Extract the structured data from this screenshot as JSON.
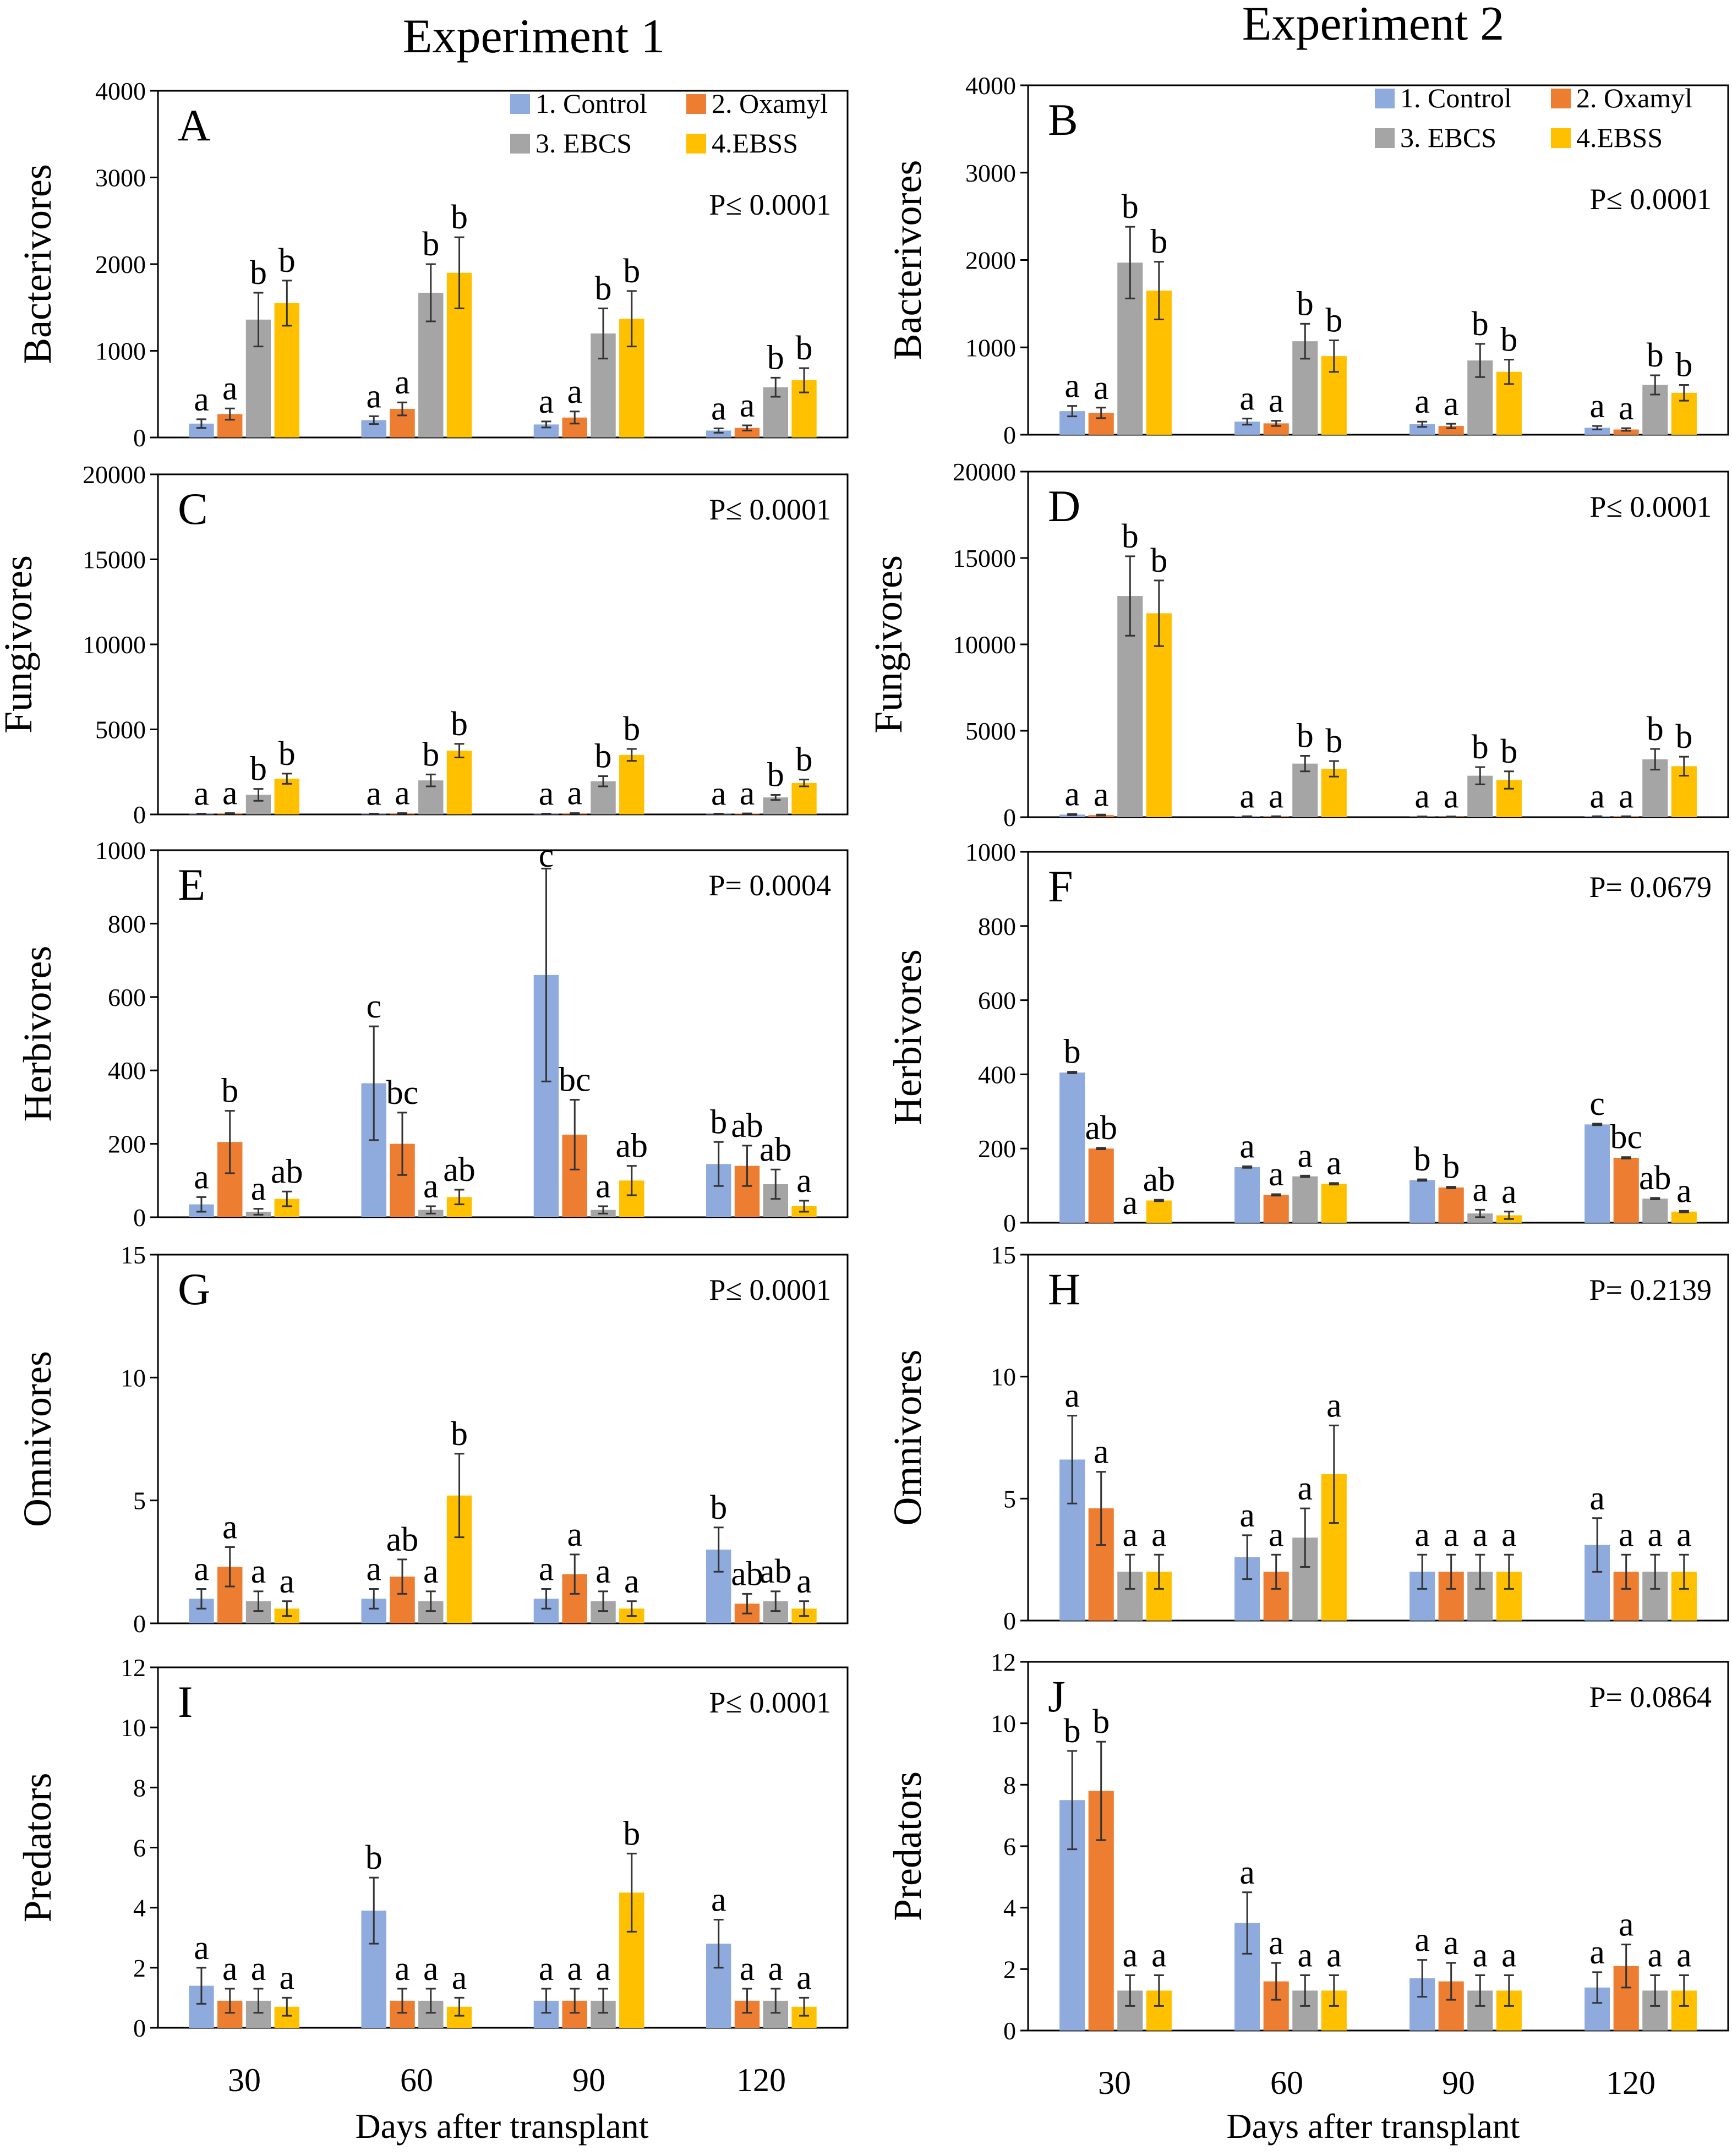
{
  "colors": {
    "control": "#8FAADC",
    "oxamyl": "#ED7D31",
    "ebcs": "#A5A5A5",
    "ebss": "#FFC000"
  },
  "experiments": [
    "Experiment 1",
    "Experiment 2"
  ],
  "xlabel": "Days after transplant",
  "x_categories": [
    "30",
    "60",
    "90",
    "120"
  ],
  "legend": [
    "1. Control",
    "2. Oxamyl",
    "3. EBCS",
    "4.EBSS"
  ],
  "chart_data": [
    {
      "type": "bar",
      "panel": "A",
      "experiment": "Experiment 1",
      "ylabel": "Bacterivores",
      "p_value": "P≤ 0.0001",
      "ylim": [
        0,
        4000
      ],
      "yticks": [
        0,
        1000,
        2000,
        3000,
        4000
      ],
      "categories": [
        "30",
        "60",
        "90",
        "120"
      ],
      "legend": true,
      "series": [
        {
          "name": "1. Control",
          "values": [
            160,
            200,
            150,
            80
          ],
          "errors": [
            50,
            45,
            35,
            25
          ],
          "letters": [
            "a",
            "a",
            "a",
            "a"
          ]
        },
        {
          "name": "2. Oxamyl",
          "values": [
            270,
            330,
            230,
            110
          ],
          "errors": [
            65,
            75,
            70,
            30
          ],
          "letters": [
            "a",
            "a",
            "a",
            "a"
          ]
        },
        {
          "name": "3. EBCS",
          "values": [
            1360,
            1670,
            1200,
            580
          ],
          "errors": [
            310,
            330,
            290,
            110
          ],
          "letters": [
            "b",
            "b",
            "b",
            "b"
          ]
        },
        {
          "name": "4.EBSS",
          "values": [
            1550,
            1900,
            1370,
            660
          ],
          "errors": [
            260,
            410,
            320,
            140
          ],
          "letters": [
            "b",
            "b",
            "b",
            "b"
          ]
        }
      ]
    },
    {
      "type": "bar",
      "panel": "B",
      "experiment": "Experiment 2",
      "ylabel": "Bacterivores",
      "p_value": "P≤ 0.0001",
      "ylim": [
        0,
        4000
      ],
      "yticks": [
        0,
        1000,
        2000,
        3000,
        4000
      ],
      "categories": [
        "30",
        "60",
        "90",
        "120"
      ],
      "legend": true,
      "series": [
        {
          "name": "1. Control",
          "values": [
            270,
            150,
            120,
            80
          ],
          "errors": [
            60,
            35,
            30,
            20
          ],
          "letters": [
            "a",
            "a",
            "a",
            "a"
          ]
        },
        {
          "name": "2. Oxamyl",
          "values": [
            250,
            130,
            100,
            60
          ],
          "errors": [
            60,
            30,
            25,
            15
          ],
          "letters": [
            "a",
            "a",
            "a",
            "a"
          ]
        },
        {
          "name": "3. EBCS",
          "values": [
            1970,
            1070,
            850,
            570
          ],
          "errors": [
            410,
            200,
            190,
            110
          ],
          "letters": [
            "b",
            "b",
            "b",
            "b"
          ]
        },
        {
          "name": "4.EBSS",
          "values": [
            1650,
            900,
            720,
            480
          ],
          "errors": [
            330,
            180,
            140,
            90
          ],
          "letters": [
            "b",
            "b",
            "b",
            "b"
          ]
        }
      ]
    },
    {
      "type": "bar",
      "panel": "C",
      "experiment": "Experiment 1",
      "ylabel": "Fungivores",
      "p_value": "P≤ 0.0001",
      "ylim": [
        0,
        20000
      ],
      "yticks": [
        0,
        5000,
        10000,
        15000,
        20000
      ],
      "categories": [
        "30",
        "60",
        "90",
        "120"
      ],
      "legend": false,
      "series": [
        {
          "name": "1. Control",
          "values": [
            40,
            40,
            40,
            40
          ],
          "errors": [
            10,
            10,
            10,
            10
          ],
          "letters": [
            "a",
            "a",
            "a",
            "a"
          ]
        },
        {
          "name": "2. Oxamyl",
          "values": [
            60,
            60,
            60,
            50
          ],
          "errors": [
            15,
            15,
            15,
            10
          ],
          "letters": [
            "a",
            "a",
            "a",
            "a"
          ]
        },
        {
          "name": "3. EBCS",
          "values": [
            1150,
            2000,
            1950,
            1000
          ],
          "errors": [
            350,
            350,
            300,
            150
          ],
          "letters": [
            "b",
            "b",
            "b",
            "b"
          ]
        },
        {
          "name": "4.EBSS",
          "values": [
            2100,
            3750,
            3500,
            1850
          ],
          "errors": [
            300,
            400,
            350,
            200
          ],
          "letters": [
            "b",
            "b",
            "b",
            "b"
          ]
        }
      ]
    },
    {
      "type": "bar",
      "panel": "D",
      "experiment": "Experiment 2",
      "ylabel": "Fungivores",
      "p_value": "P≤ 0.0001",
      "ylim": [
        0,
        20000
      ],
      "yticks": [
        0,
        5000,
        10000,
        15000,
        20000
      ],
      "categories": [
        "30",
        "60",
        "90",
        "120"
      ],
      "legend": false,
      "series": [
        {
          "name": "1. Control",
          "values": [
            150,
            40,
            30,
            40
          ],
          "errors": [
            30,
            10,
            10,
            10
          ],
          "letters": [
            "a",
            "a",
            "a",
            "a"
          ]
        },
        {
          "name": "2. Oxamyl",
          "values": [
            120,
            40,
            30,
            40
          ],
          "errors": [
            30,
            10,
            10,
            10
          ],
          "letters": [
            "a",
            "a",
            "a",
            "a"
          ]
        },
        {
          "name": "3. EBCS",
          "values": [
            12800,
            3100,
            2400,
            3350
          ],
          "errors": [
            2300,
            450,
            500,
            600
          ],
          "letters": [
            "b",
            "b",
            "b",
            "b"
          ]
        },
        {
          "name": "4.EBSS",
          "values": [
            11800,
            2800,
            2150,
            2950
          ],
          "errors": [
            1900,
            450,
            500,
            550
          ],
          "letters": [
            "b",
            "b",
            "b",
            "b"
          ]
        }
      ]
    },
    {
      "type": "bar",
      "panel": "E",
      "experiment": "Experiment 1",
      "ylabel": "Herbivores",
      "p_value": "P= 0.0004",
      "ylim": [
        0,
        1000
      ],
      "yticks": [
        0,
        200,
        400,
        600,
        800,
        1000
      ],
      "categories": [
        "30",
        "60",
        "90",
        "120"
      ],
      "legend": false,
      "series": [
        {
          "name": "1. Control",
          "values": [
            35,
            365,
            660,
            145
          ],
          "errors": [
            20,
            155,
            290,
            60
          ],
          "letters": [
            "a",
            "c",
            "c",
            "b"
          ]
        },
        {
          "name": "2. Oxamyl",
          "values": [
            205,
            200,
            225,
            140
          ],
          "errors": [
            85,
            85,
            95,
            55
          ],
          "letters": [
            "b",
            "bc",
            "bc",
            "ab"
          ]
        },
        {
          "name": "3. EBCS",
          "values": [
            15,
            20,
            20,
            90
          ],
          "errors": [
            8,
            10,
            10,
            40
          ],
          "letters": [
            "a",
            "a",
            "a",
            "ab"
          ]
        },
        {
          "name": "4.EBSS",
          "values": [
            50,
            55,
            100,
            30
          ],
          "errors": [
            20,
            20,
            40,
            15
          ],
          "letters": [
            "ab",
            "ab",
            "ab",
            "a"
          ]
        }
      ]
    },
    {
      "type": "bar",
      "panel": "F",
      "experiment": "Experiment 2",
      "ylabel": "Herbivores",
      "p_value": "P= 0.0679",
      "ylim": [
        0,
        1000
      ],
      "yticks": [
        0,
        200,
        400,
        600,
        800,
        1000
      ],
      "categories": [
        "30",
        "60",
        "90",
        "120"
      ],
      "legend": false,
      "series": [
        {
          "name": "1. Control",
          "values": [
            405,
            150,
            115,
            265
          ],
          "errors": [
            2,
            2,
            2,
            2
          ],
          "letters": [
            "b",
            "a",
            "b",
            "c"
          ]
        },
        {
          "name": "2. Oxamyl",
          "values": [
            200,
            75,
            95,
            175
          ],
          "errors": [
            2,
            2,
            2,
            2
          ],
          "letters": [
            "ab",
            "a",
            "b",
            "bc"
          ]
        },
        {
          "name": "3. EBCS",
          "values": [
            0,
            125,
            25,
            65
          ],
          "errors": [
            0,
            2,
            10,
            2
          ],
          "letters": [
            "a",
            "a",
            "a",
            "ab"
          ]
        },
        {
          "name": "4.EBSS",
          "values": [
            60,
            105,
            20,
            30
          ],
          "errors": [
            2,
            2,
            10,
            2
          ],
          "letters": [
            "ab",
            "a",
            "a",
            "a"
          ]
        }
      ]
    },
    {
      "type": "bar",
      "panel": "G",
      "experiment": "Experiment 1",
      "ylabel": "Omnivores",
      "p_value": "P≤ 0.0001",
      "ylim": [
        0,
        15
      ],
      "yticks": [
        0,
        5,
        10,
        15
      ],
      "categories": [
        "30",
        "60",
        "90",
        "120"
      ],
      "legend": false,
      "series": [
        {
          "name": "1. Control",
          "values": [
            1.0,
            1.0,
            1.0,
            3.0
          ],
          "errors": [
            0.4,
            0.4,
            0.4,
            0.9
          ],
          "letters": [
            "a",
            "a",
            "a",
            "b"
          ]
        },
        {
          "name": "2. Oxamyl",
          "values": [
            2.3,
            1.9,
            2.0,
            0.8
          ],
          "errors": [
            0.8,
            0.7,
            0.8,
            0.4
          ],
          "letters": [
            "a",
            "ab",
            "a",
            "ab"
          ]
        },
        {
          "name": "3. EBCS",
          "values": [
            0.9,
            0.9,
            0.9,
            0.9
          ],
          "errors": [
            0.4,
            0.4,
            0.4,
            0.4
          ],
          "letters": [
            "a",
            "a",
            "a",
            "ab"
          ]
        },
        {
          "name": "4.EBSS",
          "values": [
            0.6,
            5.2,
            0.6,
            0.6
          ],
          "errors": [
            0.3,
            1.7,
            0.3,
            0.3
          ],
          "letters": [
            "a",
            "b",
            "a",
            "a"
          ]
        }
      ]
    },
    {
      "type": "bar",
      "panel": "H",
      "experiment": "Experiment 2",
      "ylabel": "Omnivores",
      "p_value": "P= 0.2139",
      "ylim": [
        0,
        15
      ],
      "yticks": [
        0,
        5,
        10,
        15
      ],
      "categories": [
        "30",
        "60",
        "90",
        "120"
      ],
      "legend": false,
      "series": [
        {
          "name": "1. Control",
          "values": [
            6.6,
            2.6,
            2.0,
            3.1
          ],
          "errors": [
            1.8,
            0.9,
            0.7,
            1.1
          ],
          "letters": [
            "a",
            "a",
            "a",
            "a"
          ]
        },
        {
          "name": "2. Oxamyl",
          "values": [
            4.6,
            2.0,
            2.0,
            2.0
          ],
          "errors": [
            1.5,
            0.7,
            0.7,
            0.7
          ],
          "letters": [
            "a",
            "a",
            "a",
            "a"
          ]
        },
        {
          "name": "3. EBCS",
          "values": [
            2.0,
            3.4,
            2.0,
            2.0
          ],
          "errors": [
            0.7,
            1.2,
            0.7,
            0.7
          ],
          "letters": [
            "a",
            "a",
            "a",
            "a"
          ]
        },
        {
          "name": "4.EBSS",
          "values": [
            2.0,
            6.0,
            2.0,
            2.0
          ],
          "errors": [
            0.7,
            2.0,
            0.7,
            0.7
          ],
          "letters": [
            "a",
            "a",
            "a",
            "a"
          ]
        }
      ]
    },
    {
      "type": "bar",
      "panel": "I",
      "experiment": "Experiment 1",
      "ylabel": "Predators",
      "p_value": "P≤ 0.0001",
      "ylim": [
        0,
        12
      ],
      "yticks": [
        0,
        2,
        4,
        6,
        8,
        10,
        12
      ],
      "categories": [
        "30",
        "60",
        "90",
        "120"
      ],
      "legend": false,
      "series": [
        {
          "name": "1. Control",
          "values": [
            1.4,
            3.9,
            0.9,
            2.8
          ],
          "errors": [
            0.6,
            1.1,
            0.4,
            0.8
          ],
          "letters": [
            "a",
            "b",
            "a",
            "a"
          ]
        },
        {
          "name": "2. Oxamyl",
          "values": [
            0.9,
            0.9,
            0.9,
            0.9
          ],
          "errors": [
            0.4,
            0.4,
            0.4,
            0.4
          ],
          "letters": [
            "a",
            "a",
            "a",
            "a"
          ]
        },
        {
          "name": "3. EBCS",
          "values": [
            0.9,
            0.9,
            0.9,
            0.9
          ],
          "errors": [
            0.4,
            0.4,
            0.4,
            0.4
          ],
          "letters": [
            "a",
            "a",
            "a",
            "a"
          ]
        },
        {
          "name": "4.EBSS",
          "values": [
            0.7,
            0.7,
            4.5,
            0.7
          ],
          "errors": [
            0.3,
            0.3,
            1.3,
            0.3
          ],
          "letters": [
            "a",
            "a",
            "b",
            "a"
          ]
        }
      ]
    },
    {
      "type": "bar",
      "panel": "J",
      "experiment": "Experiment 2",
      "ylabel": "Predators",
      "p_value": "P= 0.0864",
      "ylim": [
        0,
        12
      ],
      "yticks": [
        0,
        2,
        4,
        6,
        8,
        10,
        12
      ],
      "categories": [
        "30",
        "60",
        "90",
        "120"
      ],
      "legend": false,
      "series": [
        {
          "name": "1. Control",
          "values": [
            7.5,
            3.5,
            1.7,
            1.4
          ],
          "errors": [
            1.6,
            1.0,
            0.6,
            0.5
          ],
          "letters": [
            "b",
            "a",
            "a",
            "a"
          ]
        },
        {
          "name": "2. Oxamyl",
          "values": [
            7.8,
            1.6,
            1.6,
            2.1
          ],
          "errors": [
            1.6,
            0.6,
            0.6,
            0.7
          ],
          "letters": [
            "b",
            "a",
            "a",
            "a"
          ]
        },
        {
          "name": "3. EBCS",
          "values": [
            1.3,
            1.3,
            1.3,
            1.3
          ],
          "errors": [
            0.5,
            0.5,
            0.5,
            0.5
          ],
          "letters": [
            "a",
            "a",
            "a",
            "a"
          ]
        },
        {
          "name": "4.EBSS",
          "values": [
            1.3,
            1.3,
            1.3,
            1.3
          ],
          "errors": [
            0.5,
            0.5,
            0.5,
            0.5
          ],
          "letters": [
            "a",
            "a",
            "a",
            "a"
          ]
        }
      ]
    }
  ]
}
